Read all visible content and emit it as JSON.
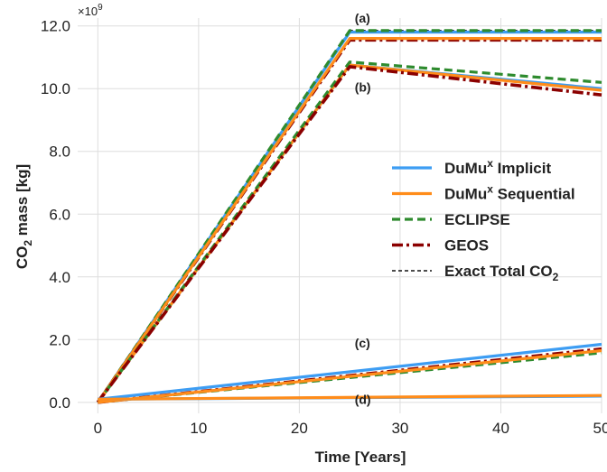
{
  "chart_data": {
    "type": "line",
    "xlabel": "Time [Years]",
    "ylabel_parts": {
      "pre": "CO",
      "sub": "2",
      "post": " mass [kg]"
    },
    "y_multiplier_parts": {
      "base": "×10",
      "exp": "9"
    },
    "xlim": [
      -2,
      50
    ],
    "ylim": [
      -0.35,
      12.25
    ],
    "x_ticks": [
      0,
      10,
      20,
      30,
      40,
      50
    ],
    "x_tick_labels": [
      "0",
      "10",
      "20",
      "30",
      "40",
      "50"
    ],
    "y_ticks": [
      0,
      2,
      4,
      6,
      8,
      10,
      12
    ],
    "y_tick_labels": [
      "0.0",
      "2.0",
      "4.0",
      "6.0",
      "8.0",
      "10.0",
      "12.0"
    ],
    "grid": true,
    "legend_placement": "center-right",
    "colors": {
      "implicit": "#3d9df3",
      "sequential": "#ff8c1a",
      "eclipse": "#2e8b2e",
      "geos": "#8b0000",
      "exact": "#111111"
    },
    "legend": [
      {
        "series": "implicit",
        "pre": "DuMu",
        "sup": "x",
        "post": " Implicit",
        "sub": ""
      },
      {
        "series": "sequential",
        "pre": "DuMu",
        "sup": "x",
        "post": " Sequential",
        "sub": ""
      },
      {
        "series": "eclipse",
        "pre": "ECLIPSE",
        "sup": "",
        "post": "",
        "sub": ""
      },
      {
        "series": "geos",
        "pre": "GEOS",
        "sup": "",
        "post": "",
        "sub": ""
      },
      {
        "series": "exact",
        "pre": "Exact Total CO",
        "sup": "",
        "post": "",
        "sub": "2"
      }
    ],
    "annotations": [
      {
        "text": "(a)",
        "x": 25.5,
        "y": 12.1
      },
      {
        "text": "(b)",
        "x": 25.5,
        "y": 9.9
      },
      {
        "text": "(c)",
        "x": 25.5,
        "y": 1.75
      },
      {
        "text": "(d)",
        "x": 25.5,
        "y": -0.05
      }
    ],
    "series": [
      {
        "key": "exact",
        "group": "a",
        "x": [
          0,
          25,
          50
        ],
        "y": [
          0.0,
          11.85,
          11.85
        ]
      },
      {
        "key": "implicit",
        "group": "a",
        "x": [
          0,
          25,
          50
        ],
        "y": [
          0.0,
          11.8,
          11.8
        ]
      },
      {
        "key": "eclipse",
        "group": "a",
        "x": [
          0,
          25,
          50
        ],
        "y": [
          0.0,
          11.85,
          11.85
        ]
      },
      {
        "key": "geos",
        "group": "a",
        "x": [
          0,
          25,
          50
        ],
        "y": [
          0.0,
          11.55,
          11.55
        ]
      },
      {
        "key": "sequential",
        "group": "a",
        "x": [
          0,
          25,
          50
        ],
        "y": [
          0.0,
          11.6,
          11.6
        ]
      },
      {
        "key": "implicit",
        "group": "b",
        "x": [
          0,
          25,
          50
        ],
        "y": [
          0.0,
          10.75,
          10.0
        ]
      },
      {
        "key": "sequential",
        "group": "b",
        "x": [
          0,
          25,
          50
        ],
        "y": [
          0.0,
          10.75,
          9.95
        ]
      },
      {
        "key": "eclipse",
        "group": "b",
        "x": [
          0,
          25,
          50
        ],
        "y": [
          0.0,
          10.85,
          10.2
        ]
      },
      {
        "key": "geos",
        "group": "b",
        "x": [
          0,
          25,
          50
        ],
        "y": [
          0.0,
          10.7,
          9.8
        ]
      },
      {
        "key": "implicit",
        "group": "c",
        "x": [
          0,
          50
        ],
        "y": [
          0.1,
          1.85
        ]
      },
      {
        "key": "eclipse",
        "group": "c",
        "x": [
          0,
          50
        ],
        "y": [
          0.0,
          1.58
        ]
      },
      {
        "key": "geos",
        "group": "c",
        "x": [
          0,
          50
        ],
        "y": [
          0.0,
          1.7
        ]
      },
      {
        "key": "sequential",
        "group": "c",
        "x": [
          0,
          50
        ],
        "y": [
          0.0,
          1.65
        ]
      },
      {
        "key": "implicit",
        "group": "d",
        "x": [
          0,
          50
        ],
        "y": [
          0.1,
          0.2
        ]
      },
      {
        "key": "sequential",
        "group": "d",
        "x": [
          0,
          50
        ],
        "y": [
          0.1,
          0.22
        ]
      }
    ]
  }
}
